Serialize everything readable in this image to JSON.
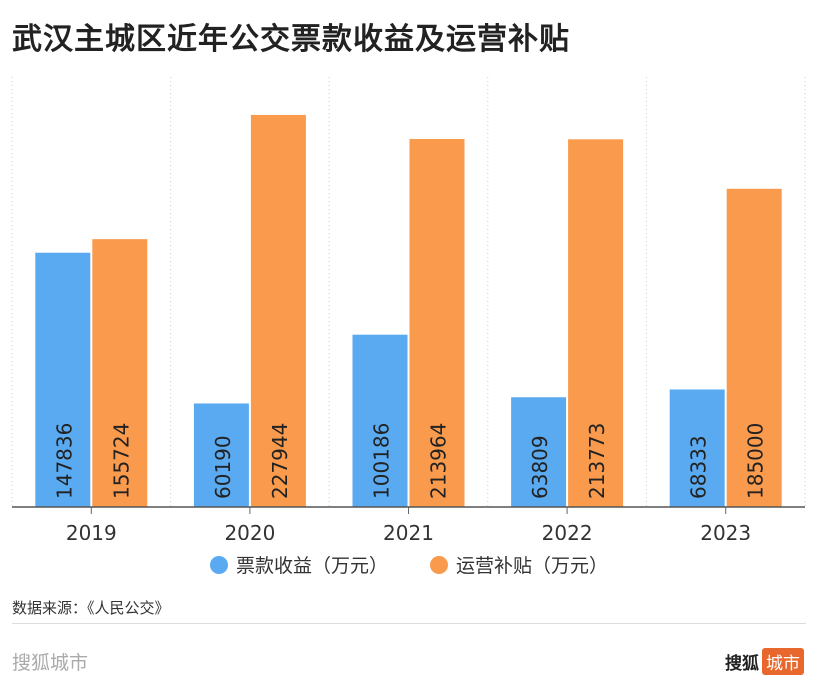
{
  "chart_data": {
    "type": "bar",
    "title": "武汉主城区近年公交票款收益及运营补贴",
    "categories": [
      "2019",
      "2020",
      "2021",
      "2022",
      "2023"
    ],
    "series": [
      {
        "name": "票款收益（万元）",
        "color": "#5aaaf2",
        "values": [
          147836,
          60190,
          100186,
          63809,
          68333
        ]
      },
      {
        "name": "运营补贴（万元）",
        "color": "#fa9a4d",
        "values": [
          155724,
          227944,
          213964,
          213773,
          185000
        ]
      }
    ],
    "ylim": [
      0,
      250000
    ],
    "grid": "vertical dotted",
    "legend": "bottom",
    "data_labels": "inside bars, rotated"
  },
  "source": "数据来源：《人民公交》",
  "brand": "搜狐城市",
  "logo": {
    "text": "搜狐",
    "tag": "城市"
  }
}
